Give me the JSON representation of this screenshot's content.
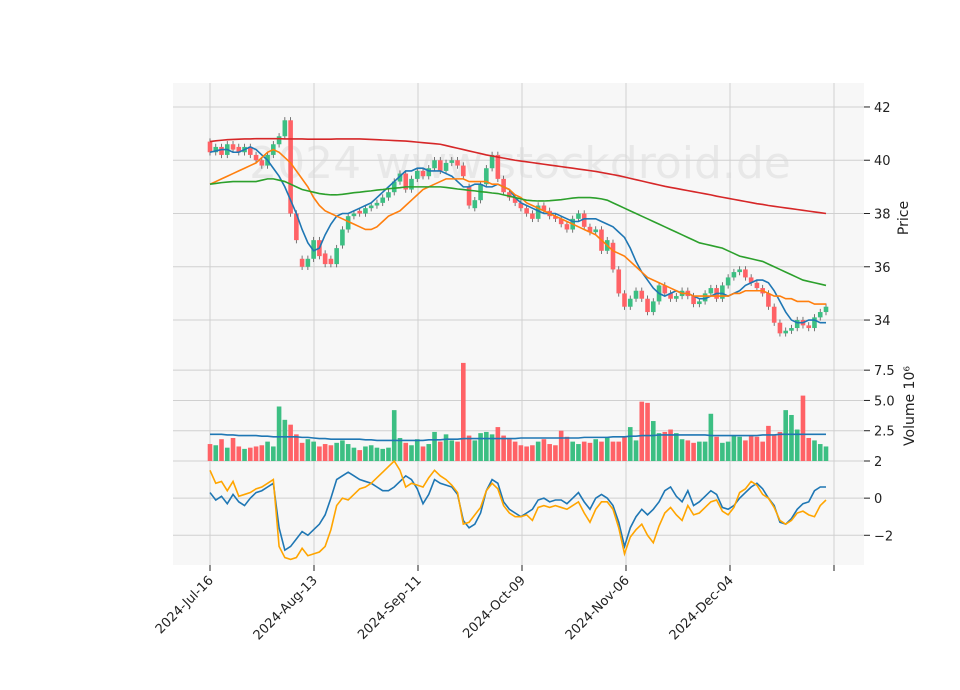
{
  "chart_data": {
    "type": "candlestick",
    "watermark": "2024 www.stockdroid.de",
    "x_tick_labels": [
      "2024-Jul-16",
      "2024-Aug-13",
      "2024-Sep-11",
      "2024-Oct-09",
      "2024-Nov-06",
      "2024-Dec-04"
    ],
    "price_panel": {
      "ylabel": "Price",
      "ylim": [
        32.8,
        42.9
      ],
      "yticks": [
        34,
        36,
        38,
        40,
        42
      ],
      "series": [
        {
          "name": "",
          "color": "#1f77b4",
          "values": [
            40.3,
            40.35,
            40.4,
            40.4,
            40.3,
            40.3,
            40.4,
            40.5,
            40.4,
            40.2,
            40.0,
            39.7,
            39.4,
            39.0,
            38.5,
            38.0,
            37.4,
            36.9,
            36.6,
            36.7,
            37.2,
            37.6,
            37.9,
            38.0,
            38.0,
            38.1,
            38.2,
            38.3,
            38.4,
            38.6,
            38.8,
            39.0,
            39.2,
            39.4,
            39.6,
            39.6,
            39.7,
            39.7,
            39.6,
            39.6,
            39.6,
            39.5,
            39.4,
            39.2,
            39.0,
            39.0,
            39.1,
            39.1,
            39.0,
            39.0,
            39.1,
            39.0,
            38.9,
            38.6,
            38.4,
            38.3,
            38.2,
            38.1,
            38.0,
            38.0,
            38.0,
            37.9,
            37.8,
            37.7,
            37.7,
            37.8,
            37.8,
            37.8,
            37.7,
            37.6,
            37.5,
            37.3,
            37.1,
            36.7,
            36.2,
            35.8,
            35.5,
            35.2,
            35.0,
            34.9,
            35.0,
            35.1,
            35.0,
            35.0,
            34.9,
            34.8,
            34.8,
            34.9,
            35.0,
            35.0,
            34.9,
            35.0,
            35.1,
            35.3,
            35.4,
            35.5,
            35.5,
            35.4,
            35.1,
            34.7,
            34.3,
            34.0,
            33.9,
            33.9,
            34.0,
            34.0,
            33.9,
            33.9
          ]
        },
        {
          "name": "",
          "color": "#ff7f0e",
          "values": [
            39.1,
            39.2,
            39.3,
            39.4,
            39.5,
            39.6,
            39.7,
            39.8,
            39.9,
            40.1,
            40.3,
            40.4,
            40.3,
            40.1,
            39.9,
            39.6,
            39.3,
            39.0,
            38.6,
            38.3,
            38.1,
            38.0,
            37.9,
            37.8,
            37.7,
            37.6,
            37.5,
            37.4,
            37.4,
            37.5,
            37.7,
            37.9,
            38.0,
            38.1,
            38.3,
            38.5,
            38.7,
            38.9,
            39.0,
            39.1,
            39.2,
            39.3,
            39.3,
            39.3,
            39.3,
            39.2,
            39.2,
            39.2,
            39.2,
            39.1,
            39.1,
            39.0,
            38.9,
            38.7,
            38.6,
            38.4,
            38.3,
            38.2,
            38.1,
            38.0,
            37.9,
            37.8,
            37.7,
            37.6,
            37.5,
            37.4,
            37.3,
            37.2,
            37.0,
            36.8,
            36.6,
            36.5,
            36.4,
            36.2,
            36.0,
            35.8,
            35.6,
            35.5,
            35.4,
            35.3,
            35.2,
            35.1,
            35.0,
            35.0,
            34.9,
            34.9,
            34.9,
            34.9,
            34.9,
            34.9,
            34.9,
            35.0,
            35.0,
            35.1,
            35.1,
            35.1,
            35.1,
            35.0,
            34.9,
            34.9,
            34.8,
            34.8,
            34.7,
            34.7,
            34.7,
            34.6,
            34.6,
            34.6
          ]
        },
        {
          "name": "",
          "color": "#2ca02c",
          "values": [
            39.1,
            39.13,
            39.16,
            39.18,
            39.2,
            39.2,
            39.2,
            39.2,
            39.2,
            39.25,
            39.3,
            39.3,
            39.25,
            39.2,
            39.1,
            39.0,
            38.9,
            38.85,
            38.8,
            38.75,
            38.72,
            38.7,
            38.7,
            38.72,
            38.75,
            38.78,
            38.8,
            38.83,
            38.85,
            38.88,
            38.9,
            38.93,
            38.95,
            38.97,
            39.0,
            39.0,
            39.0,
            39.0,
            39.0,
            39.0,
            39.0,
            38.98,
            38.95,
            38.92,
            38.9,
            38.87,
            38.85,
            38.82,
            38.8,
            38.77,
            38.75,
            38.7,
            38.65,
            38.6,
            38.55,
            38.5,
            38.48,
            38.47,
            38.47,
            38.48,
            38.5,
            38.52,
            38.55,
            38.58,
            38.6,
            38.6,
            38.6,
            38.58,
            38.55,
            38.5,
            38.4,
            38.3,
            38.2,
            38.1,
            38.0,
            37.9,
            37.8,
            37.7,
            37.6,
            37.5,
            37.4,
            37.3,
            37.2,
            37.1,
            37.0,
            36.9,
            36.85,
            36.8,
            36.75,
            36.7,
            36.6,
            36.5,
            36.4,
            36.35,
            36.3,
            36.25,
            36.2,
            36.1,
            36.0,
            35.9,
            35.8,
            35.7,
            35.6,
            35.5,
            35.45,
            35.4,
            35.35,
            35.3
          ]
        },
        {
          "name": "",
          "color": "#d62728",
          "values": [
            40.7,
            40.73,
            40.75,
            40.77,
            40.78,
            40.79,
            40.8,
            40.8,
            40.81,
            40.81,
            40.81,
            40.81,
            40.81,
            40.8,
            40.8,
            40.8,
            40.8,
            40.79,
            40.79,
            40.79,
            40.79,
            40.79,
            40.8,
            40.8,
            40.8,
            40.8,
            40.8,
            40.79,
            40.78,
            40.77,
            40.76,
            40.75,
            40.74,
            40.73,
            40.72,
            40.7,
            40.68,
            40.66,
            40.64,
            40.62,
            40.6,
            40.55,
            40.5,
            40.45,
            40.4,
            40.35,
            40.3,
            40.25,
            40.2,
            40.16,
            40.12,
            40.08,
            40.04,
            40.0,
            39.97,
            39.94,
            39.91,
            39.88,
            39.85,
            39.82,
            39.79,
            39.76,
            39.73,
            39.7,
            39.67,
            39.64,
            39.61,
            39.58,
            39.54,
            39.5,
            39.46,
            39.42,
            39.37,
            39.32,
            39.27,
            39.22,
            39.17,
            39.12,
            39.07,
            39.02,
            38.98,
            38.94,
            38.9,
            38.86,
            38.82,
            38.78,
            38.74,
            38.7,
            38.65,
            38.61,
            38.57,
            38.53,
            38.49,
            38.45,
            38.41,
            38.37,
            38.34,
            38.3,
            38.27,
            38.24,
            38.21,
            38.18,
            38.15,
            38.12,
            38.09,
            38.06,
            38.03,
            38.0
          ]
        }
      ],
      "candles_close": [
        40.3,
        40.5,
        40.2,
        40.6,
        40.4,
        40.3,
        40.5,
        40.2,
        40.0,
        39.8,
        40.2,
        40.6,
        40.9,
        41.5,
        38.0,
        37.0,
        36.0,
        36.3,
        37.0,
        36.4,
        36.1,
        36.1,
        36.7,
        37.4,
        37.9,
        38.0,
        38.0,
        38.2,
        38.3,
        38.4,
        38.6,
        38.8,
        39.2,
        39.5,
        38.9,
        39.3,
        39.6,
        39.4,
        39.7,
        40.0,
        39.6,
        39.9,
        40.0,
        39.8,
        39.4,
        38.3,
        38.5,
        39.1,
        39.7,
        40.2,
        39.3,
        38.8,
        38.6,
        38.4,
        38.2,
        38.0,
        37.8,
        38.3,
        38.1,
        37.9,
        37.8,
        37.6,
        37.4,
        37.8,
        38.0,
        37.5,
        37.3,
        37.4,
        36.6,
        37.0,
        35.9,
        35.0,
        34.5,
        34.8,
        35.1,
        34.8,
        34.3,
        34.7,
        35.3,
        35.0,
        34.8,
        34.9,
        35.1,
        34.9,
        34.6,
        34.7,
        35.0,
        35.2,
        34.8,
        35.3,
        35.6,
        35.8,
        35.9,
        35.6,
        35.4,
        35.2,
        35.0,
        34.5,
        33.9,
        33.5,
        33.6,
        33.7,
        34.0,
        33.8,
        33.7,
        34.1,
        34.3,
        34.5
      ],
      "candles_open": [
        40.7,
        40.3,
        40.5,
        40.2,
        40.6,
        40.5,
        40.3,
        40.5,
        40.2,
        40.0,
        39.8,
        40.2,
        40.6,
        40.9,
        41.5,
        38.0,
        36.3,
        36.0,
        36.3,
        37.0,
        36.5,
        36.3,
        36.1,
        36.8,
        37.4,
        37.9,
        38.1,
        38.0,
        38.2,
        38.3,
        38.4,
        38.6,
        38.8,
        39.2,
        39.5,
        38.9,
        39.3,
        39.6,
        39.4,
        39.7,
        40.0,
        39.6,
        39.9,
        40.0,
        39.8,
        39.0,
        38.2,
        38.5,
        39.1,
        39.7,
        40.2,
        39.3,
        38.8,
        38.6,
        38.4,
        38.2,
        38.0,
        37.8,
        38.3,
        38.1,
        37.9,
        37.8,
        37.6,
        37.4,
        37.8,
        38.0,
        37.5,
        37.3,
        37.4,
        36.6,
        36.9,
        35.9,
        35.0,
        34.5,
        34.8,
        35.1,
        34.8,
        34.3,
        34.7,
        35.3,
        35.0,
        34.8,
        34.9,
        35.1,
        34.9,
        34.6,
        34.7,
        35.0,
        35.2,
        34.8,
        35.3,
        35.6,
        35.8,
        35.9,
        35.6,
        35.4,
        35.2,
        35.0,
        34.5,
        33.9,
        33.5,
        33.6,
        33.7,
        34.0,
        33.8,
        33.7,
        34.1,
        34.3
      ]
    },
    "volume_panel": {
      "ylabel": "Volume  10⁶",
      "ylim": [
        0,
        9.0
      ],
      "yticks": [
        "2.5",
        "5.0",
        "7.5"
      ],
      "values": [
        1.4,
        1.3,
        1.8,
        1.1,
        1.9,
        1.2,
        1.0,
        1.1,
        1.2,
        1.3,
        1.6,
        1.2,
        4.5,
        3.4,
        3.0,
        2.2,
        1.5,
        1.8,
        1.6,
        1.2,
        1.4,
        1.3,
        1.5,
        1.7,
        1.4,
        1.1,
        0.9,
        1.2,
        1.3,
        1.1,
        1.0,
        1.1,
        4.2,
        1.9,
        1.5,
        1.3,
        1.8,
        1.2,
        1.4,
        2.4,
        1.6,
        2.2,
        1.7,
        1.6,
        8.1,
        2.1,
        1.7,
        2.3,
        2.4,
        2.2,
        2.8,
        2.1,
        1.8,
        1.6,
        1.3,
        1.2,
        1.3,
        1.6,
        1.8,
        1.4,
        1.3,
        2.5,
        2.0,
        1.6,
        1.4,
        1.6,
        1.5,
        1.8,
        1.6,
        1.9,
        1.6,
        1.6,
        2.0,
        2.8,
        1.7,
        4.9,
        4.8,
        3.3,
        2.3,
        2.4,
        2.6,
        2.3,
        1.8,
        1.7,
        1.5,
        1.6,
        1.6,
        3.9,
        2.0,
        1.5,
        1.6,
        2.1,
        2.0,
        1.7,
        2.1,
        2.0,
        1.6,
        2.9,
        2.1,
        2.4,
        4.2,
        3.8,
        2.6,
        5.4,
        1.9,
        1.7,
        1.4,
        1.2,
        1.9
      ],
      "average": [
        2.2,
        2.2,
        2.2,
        2.15,
        2.15,
        2.1,
        2.1,
        2.1,
        2.1,
        2.05,
        2.05,
        2.0,
        2.0,
        2.0,
        2.0,
        2.0,
        1.95,
        1.95,
        1.9,
        1.85,
        1.85,
        1.8,
        1.8,
        1.8,
        1.8,
        1.8,
        1.8,
        1.75,
        1.75,
        1.7,
        1.7,
        1.7,
        1.7,
        1.7,
        1.7,
        1.7,
        1.7,
        1.7,
        1.75,
        1.75,
        1.75,
        1.8,
        1.8,
        1.8,
        1.85,
        1.85,
        1.85,
        1.85,
        1.85,
        1.85,
        1.85,
        1.85,
        1.85,
        1.85,
        1.9,
        1.9,
        1.9,
        1.9,
        1.9,
        1.9,
        1.9,
        1.9,
        1.9,
        1.9,
        1.9,
        1.95,
        1.95,
        1.95,
        1.95,
        1.95,
        2.0,
        2.0,
        2.0,
        2.05,
        2.05,
        2.1,
        2.1,
        2.1,
        2.15,
        2.15,
        2.15,
        2.15,
        2.15,
        2.15,
        2.15,
        2.15,
        2.15,
        2.1,
        2.1,
        2.1,
        2.1,
        2.1,
        2.1,
        2.1,
        2.1,
        2.1,
        2.15,
        2.15,
        2.15,
        2.2,
        2.2,
        2.2,
        2.2,
        2.2,
        2.2,
        2.2,
        2.2,
        2.2
      ]
    },
    "oscillator_panel": {
      "ylim": [
        -3.6,
        2.0
      ],
      "yticks": [
        "2",
        "0",
        "−2"
      ],
      "series": [
        {
          "name": "",
          "color": "#1f77b4",
          "values": [
            0.3,
            -0.1,
            0.1,
            -0.3,
            0.2,
            -0.2,
            -0.4,
            0.0,
            0.3,
            0.4,
            0.6,
            0.8,
            -1.6,
            -2.8,
            -2.6,
            -2.2,
            -1.8,
            -2.0,
            -1.7,
            -1.4,
            -0.9,
            0.0,
            1.0,
            1.2,
            1.4,
            1.2,
            1.0,
            0.9,
            0.8,
            0.6,
            0.4,
            0.4,
            0.6,
            0.9,
            1.2,
            1.0,
            0.5,
            -0.3,
            0.2,
            1.0,
            0.8,
            0.7,
            0.6,
            0.2,
            -1.2,
            -1.6,
            -1.4,
            -0.8,
            0.4,
            1.0,
            0.8,
            -0.2,
            -0.6,
            -0.8,
            -1.0,
            -0.8,
            -0.6,
            -0.1,
            0.0,
            -0.2,
            -0.1,
            -0.1,
            -0.3,
            0.0,
            0.3,
            -0.2,
            -0.6,
            0.0,
            0.2,
            0.0,
            -0.4,
            -1.3,
            -2.6,
            -1.6,
            -1.0,
            -0.6,
            -0.9,
            -0.6,
            -0.2,
            0.4,
            0.6,
            0.1,
            -0.2,
            0.4,
            -0.4,
            -0.2,
            0.1,
            0.4,
            0.2,
            -0.5,
            -0.6,
            -0.4,
            0.0,
            0.3,
            0.6,
            0.8,
            0.5,
            0.0,
            -0.4,
            -1.3,
            -1.4,
            -1.1,
            -0.6,
            -0.3,
            -0.2,
            0.4,
            0.6,
            0.6
          ]
        },
        {
          "name": "",
          "color": "#ffa500",
          "values": [
            1.5,
            0.8,
            0.9,
            0.4,
            0.9,
            0.1,
            0.2,
            0.3,
            0.5,
            0.6,
            0.8,
            1.0,
            -2.6,
            -3.2,
            -3.3,
            -3.2,
            -2.7,
            -3.1,
            -3.0,
            -2.9,
            -2.6,
            -1.7,
            -0.4,
            0.0,
            -0.1,
            0.2,
            0.5,
            0.6,
            0.8,
            1.1,
            1.4,
            1.7,
            2.0,
            1.5,
            0.6,
            0.8,
            0.7,
            0.6,
            1.1,
            1.5,
            1.2,
            1.0,
            0.7,
            0.3,
            -1.4,
            -1.3,
            -0.9,
            -0.5,
            0.4,
            0.8,
            0.5,
            -0.4,
            -0.8,
            -1.0,
            -1.0,
            -0.9,
            -1.2,
            -0.5,
            -0.4,
            -0.5,
            -0.4,
            -0.5,
            -0.6,
            -0.4,
            -0.2,
            -0.8,
            -1.3,
            -0.6,
            -0.2,
            -0.2,
            -0.6,
            -1.6,
            -3.0,
            -2.1,
            -1.7,
            -1.4,
            -2.0,
            -2.4,
            -1.5,
            -0.8,
            -0.5,
            -0.9,
            -1.2,
            -0.4,
            -0.9,
            -0.8,
            -0.5,
            -0.2,
            -0.1,
            -0.7,
            -0.9,
            -0.5,
            0.3,
            0.5,
            0.9,
            0.7,
            0.2,
            0.0,
            -0.5,
            -1.2,
            -1.4,
            -1.2,
            -0.8,
            -0.7,
            -0.9,
            -1.0,
            -0.4,
            -0.1
          ]
        }
      ]
    },
    "up_color": "#3cbf83",
    "down_color": "#ff6266"
  }
}
